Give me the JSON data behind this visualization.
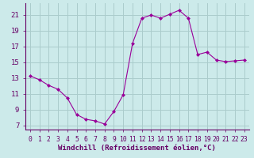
{
  "hours": [
    0,
    1,
    2,
    3,
    4,
    5,
    6,
    7,
    8,
    9,
    10,
    11,
    12,
    13,
    14,
    15,
    16,
    17,
    18,
    19,
    20,
    21,
    22,
    23
  ],
  "windchill": [
    13.3,
    12.8,
    12.1,
    11.6,
    10.5,
    8.4,
    7.8,
    7.6,
    7.2,
    8.8,
    10.9,
    17.4,
    20.6,
    21.0,
    20.6,
    21.1,
    21.6,
    20.6,
    16.0,
    16.3,
    15.3,
    15.1,
    15.2,
    15.3
  ],
  "line_color": "#990099",
  "marker": "D",
  "marker_size": 2.0,
  "bg_color": "#cceaea",
  "grid_color": "#aacccc",
  "xlabel": "Windchill (Refroidissement éolien,°C)",
  "ylabel_ticks": [
    7,
    9,
    11,
    13,
    15,
    17,
    19,
    21
  ],
  "xlim": [
    -0.5,
    23.5
  ],
  "ylim": [
    6.5,
    22.5
  ],
  "xticks": [
    0,
    1,
    2,
    3,
    4,
    5,
    6,
    7,
    8,
    9,
    10,
    11,
    12,
    13,
    14,
    15,
    16,
    17,
    18,
    19,
    20,
    21,
    22,
    23
  ],
  "tick_color": "#660066",
  "axis_color": "#660066",
  "xlabel_fontsize": 6.5,
  "ytick_fontsize": 6.5,
  "xtick_fontsize": 5.8
}
